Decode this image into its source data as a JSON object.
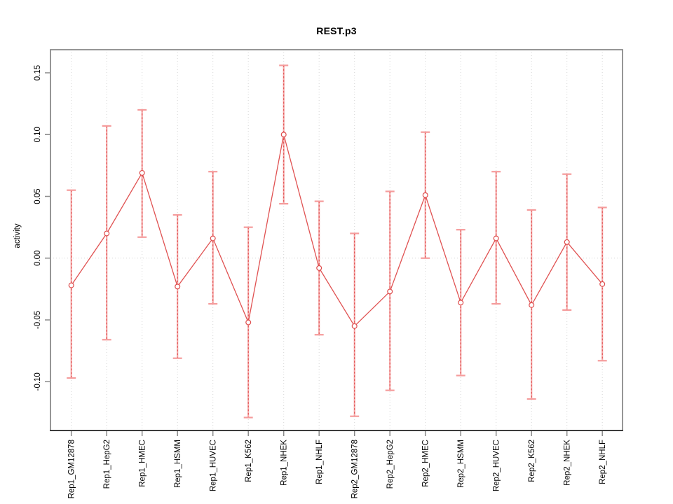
{
  "chart_data": {
    "type": "line",
    "title": "REST.p3",
    "xlabel": "",
    "ylabel": "activity",
    "categories": [
      "Rep1_GM12878",
      "Rep1_HepG2",
      "Rep1_HMEC",
      "Rep1_HSMM",
      "Rep1_HUVEC",
      "Rep1_K562",
      "Rep1_NHEK",
      "Rep1_NHLF",
      "Rep2_GM12878",
      "Rep2_HepG2",
      "Rep2_HMEC",
      "Rep2_HSMM",
      "Rep2_HUVEC",
      "Rep2_K562",
      "Rep2_NHEK",
      "Rep2_NHLF"
    ],
    "series": [
      {
        "name": "activity",
        "values": [
          -0.022,
          0.02,
          0.069,
          -0.023,
          0.016,
          -0.052,
          0.1,
          -0.008,
          -0.055,
          -0.027,
          0.051,
          -0.036,
          0.016,
          -0.038,
          0.013,
          -0.021
        ],
        "upper": [
          0.055,
          0.107,
          0.12,
          0.035,
          0.07,
          0.025,
          0.156,
          0.046,
          0.02,
          0.054,
          0.102,
          0.023,
          0.07,
          0.039,
          0.068,
          0.041
        ],
        "lower": [
          -0.097,
          -0.066,
          0.017,
          -0.081,
          -0.037,
          -0.129,
          0.044,
          -0.062,
          -0.128,
          -0.107,
          0.0,
          -0.095,
          -0.037,
          -0.114,
          -0.042,
          -0.083
        ]
      }
    ],
    "ylim": [
      -0.1395,
      0.1687
    ],
    "y_ticks": [
      0.15,
      0.1,
      0.05,
      0.0,
      -0.05,
      -0.1
    ],
    "y_tick_labels": [
      "0.15",
      "0.10",
      "0.05",
      "0.00",
      "-0.05",
      "-0.10"
    ],
    "grid": {
      "vertical_gridlines": true,
      "horizontal_zero_line": true,
      "style": "dotted"
    },
    "legend_position": "none",
    "point_style": "open-circle",
    "error_bars": true,
    "colors": {
      "series_line": "#e05252",
      "point_stroke": "#de4b4b",
      "error_bar_fill": "#f6abab",
      "error_bar_dash": "#de4b4b",
      "error_bar_cap": "#f59c9c",
      "gridline": "#d6d6d6",
      "frame": "#8a8a8a",
      "x_axis_line": "#3c3c3c",
      "text": "#000000",
      "background": "#ffffff"
    }
  }
}
